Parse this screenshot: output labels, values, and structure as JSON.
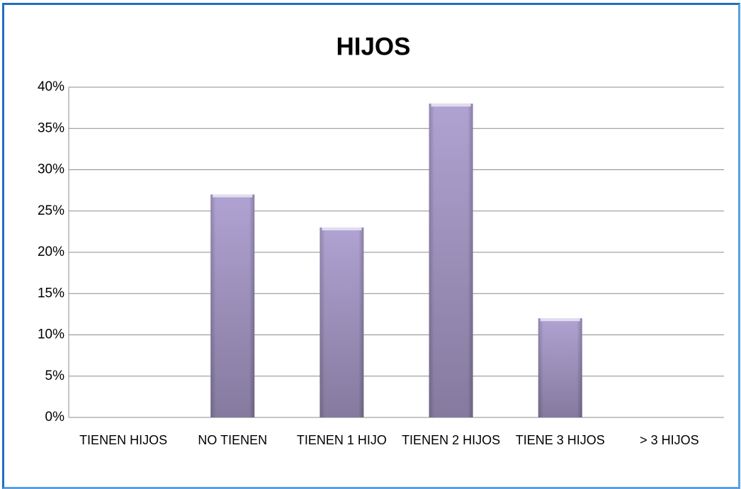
{
  "chart_data": {
    "type": "bar",
    "title": "HIJOS",
    "categories": [
      "TIENEN HIJOS",
      "NO TIENEN",
      "TIENEN 1 HIJO",
      "TIENEN 2 HIJOS",
      "TIENE 3 HIJOS",
      "> 3 HIJOS"
    ],
    "values": [
      0,
      27,
      23,
      38,
      12,
      0
    ],
    "color": "#a193c2",
    "ylim": [
      0,
      40
    ],
    "yticks": [
      {
        "value": 0,
        "label": "0%"
      },
      {
        "value": 5,
        "label": "5%"
      },
      {
        "value": 10,
        "label": "10%"
      },
      {
        "value": 15,
        "label": "15%"
      },
      {
        "value": 20,
        "label": "20%"
      },
      {
        "value": 25,
        "label": "25%"
      },
      {
        "value": 30,
        "label": "30%"
      },
      {
        "value": 35,
        "label": "35%"
      },
      {
        "value": 40,
        "label": "40%"
      }
    ],
    "grid": true
  }
}
